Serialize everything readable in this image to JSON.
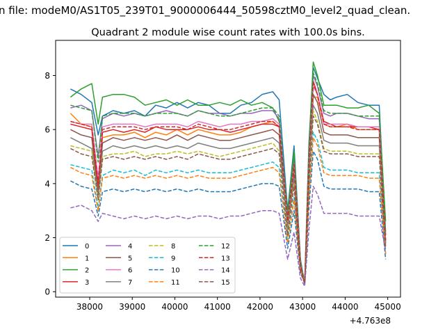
{
  "chart_data": {
    "type": "line",
    "suptitle": "n file: modeM0/AS1T05_239T01_9000006444_50598cztM0_level2_quad_clean.",
    "title": "Quadrant 2 module wise count rates with 100.0s bins.",
    "xlabel": "",
    "ylabel": "",
    "x_offset_label": "+4.763e8",
    "xlim": [
      37200,
      45300
    ],
    "ylim": [
      -0.2,
      9.3
    ],
    "x_ticks": [
      38000,
      39000,
      40000,
      41000,
      42000,
      43000,
      44000,
      45000
    ],
    "x_tick_labels": [
      "38000",
      "39000",
      "40000",
      "41000",
      "42000",
      "43000",
      "44000",
      "45000"
    ],
    "y_ticks": [
      0,
      2,
      4,
      6,
      8
    ],
    "y_tick_labels": [
      "0",
      "2",
      "4",
      "6",
      "8"
    ],
    "grid": false,
    "legend": "lower-left, 4 columns",
    "x": [
      37550,
      37800,
      38050,
      38200,
      38300,
      38550,
      38800,
      39050,
      39300,
      39550,
      39800,
      40050,
      40300,
      40550,
      40800,
      41050,
      41300,
      41550,
      41800,
      42050,
      42300,
      42450,
      42650,
      42800,
      42950,
      43050,
      43150,
      43250,
      43350,
      43500,
      43650,
      43800,
      44050,
      44300,
      44550,
      44800,
      44950
    ],
    "series": [
      {
        "name": "0",
        "color": "#1f77b4",
        "dash": "solid",
        "values": [
          7.5,
          7.3,
          7.0,
          5.8,
          6.5,
          6.7,
          6.6,
          6.7,
          6.5,
          6.9,
          6.8,
          7.0,
          6.8,
          7.0,
          6.9,
          6.6,
          6.6,
          6.9,
          7.0,
          7.3,
          7.4,
          7.1,
          3.0,
          5.4,
          1.2,
          0.3,
          5.5,
          8.3,
          7.9,
          7.3,
          7.1,
          7.2,
          7.3,
          7.0,
          6.9,
          6.9,
          2.2
        ]
      },
      {
        "name": "1",
        "color": "#ff7f0e",
        "dash": "solid",
        "values": [
          6.6,
          6.2,
          6.1,
          3.9,
          5.7,
          5.8,
          5.8,
          5.9,
          5.7,
          5.9,
          5.8,
          6.0,
          5.8,
          6.0,
          5.9,
          5.8,
          5.8,
          5.9,
          6.1,
          6.2,
          6.3,
          6.1,
          2.6,
          4.6,
          1.0,
          0.3,
          4.7,
          7.2,
          7.2,
          6.2,
          6.1,
          6.1,
          6.2,
          6.0,
          6.0,
          6.0,
          1.8
        ]
      },
      {
        "name": "2",
        "color": "#2ca02c",
        "dash": "solid",
        "values": [
          7.2,
          7.5,
          7.7,
          6.2,
          7.2,
          7.3,
          7.3,
          7.2,
          6.9,
          7.0,
          7.1,
          6.9,
          7.1,
          6.9,
          6.9,
          7.0,
          6.9,
          7.1,
          6.9,
          7.0,
          6.8,
          6.3,
          2.9,
          5.2,
          1.1,
          0.3,
          5.3,
          8.5,
          8.0,
          6.9,
          6.9,
          6.9,
          6.8,
          6.8,
          6.9,
          6.6,
          2.6
        ]
      },
      {
        "name": "3",
        "color": "#d62728",
        "dash": "solid",
        "values": [
          6.2,
          6.1,
          6.0,
          3.8,
          5.9,
          6.0,
          5.9,
          6.0,
          5.9,
          6.1,
          6.0,
          6.0,
          6.0,
          6.1,
          6.0,
          6.0,
          5.9,
          6.0,
          6.1,
          6.2,
          6.2,
          6.1,
          2.5,
          4.6,
          1.0,
          0.3,
          4.8,
          7.8,
          7.3,
          6.3,
          6.2,
          6.1,
          6.1,
          6.1,
          6.1,
          6.0,
          1.9
        ]
      },
      {
        "name": "4",
        "color": "#9467bd",
        "dash": "solid",
        "values": [
          6.8,
          6.9,
          6.7,
          5.0,
          6.4,
          6.6,
          6.5,
          6.6,
          6.5,
          6.6,
          6.7,
          6.6,
          6.5,
          6.7,
          6.6,
          6.6,
          6.5,
          6.6,
          6.6,
          6.7,
          6.7,
          6.4,
          2.7,
          4.9,
          1.1,
          0.3,
          5.0,
          8.0,
          7.6,
          6.6,
          6.5,
          6.6,
          6.6,
          6.5,
          6.4,
          6.4,
          2.1
        ]
      },
      {
        "name": "5",
        "color": "#8c564b",
        "dash": "solid",
        "values": [
          6.0,
          5.8,
          5.7,
          3.6,
          5.5,
          5.7,
          5.6,
          5.7,
          5.6,
          5.7,
          5.6,
          5.8,
          5.6,
          5.8,
          5.7,
          5.6,
          5.6,
          5.7,
          5.8,
          5.9,
          6.0,
          5.8,
          2.4,
          4.4,
          0.9,
          0.3,
          4.5,
          7.3,
          7.0,
          5.9,
          5.8,
          5.8,
          5.8,
          5.7,
          5.7,
          5.7,
          1.8
        ]
      },
      {
        "name": "6",
        "color": "#e377c2",
        "dash": "solid",
        "values": [
          6.3,
          6.2,
          6.2,
          4.2,
          6.1,
          6.2,
          6.2,
          6.2,
          6.1,
          6.2,
          6.2,
          6.2,
          6.1,
          6.3,
          6.2,
          6.1,
          6.2,
          6.2,
          6.3,
          6.3,
          6.4,
          6.2,
          2.6,
          4.7,
          1.0,
          0.3,
          4.9,
          7.6,
          7.3,
          6.2,
          6.2,
          6.2,
          6.2,
          6.1,
          6.1,
          6.1,
          1.9
        ]
      },
      {
        "name": "7",
        "color": "#7f7f7f",
        "dash": "solid",
        "values": [
          5.7,
          5.5,
          5.3,
          3.5,
          5.2,
          5.4,
          5.3,
          5.4,
          5.3,
          5.4,
          5.3,
          5.4,
          5.3,
          5.5,
          5.4,
          5.3,
          5.3,
          5.4,
          5.5,
          5.6,
          5.7,
          5.5,
          2.3,
          4.2,
          0.9,
          0.3,
          4.3,
          6.9,
          6.6,
          5.6,
          5.5,
          5.5,
          5.5,
          5.4,
          5.4,
          5.4,
          1.7
        ]
      },
      {
        "name": "8",
        "color": "#bcbd22",
        "dash": "dashed",
        "values": [
          5.4,
          5.3,
          5.2,
          3.4,
          5.0,
          5.1,
          5.1,
          5.2,
          5.0,
          5.1,
          5.1,
          5.2,
          5.1,
          5.2,
          5.1,
          5.0,
          5.1,
          5.2,
          5.3,
          5.4,
          5.5,
          5.2,
          2.2,
          4.0,
          0.9,
          0.3,
          4.1,
          6.7,
          6.3,
          5.3,
          5.2,
          5.2,
          5.2,
          5.1,
          5.1,
          5.1,
          1.6
        ]
      },
      {
        "name": "9",
        "color": "#17becf",
        "dash": "dashed",
        "values": [
          4.7,
          4.6,
          4.5,
          3.1,
          4.3,
          4.5,
          4.4,
          4.5,
          4.3,
          4.5,
          4.4,
          4.5,
          4.4,
          4.5,
          4.4,
          4.4,
          4.4,
          4.5,
          4.6,
          4.7,
          4.8,
          4.6,
          1.9,
          3.5,
          0.8,
          0.3,
          3.6,
          5.9,
          5.6,
          4.6,
          4.5,
          4.5,
          4.5,
          4.4,
          4.4,
          4.4,
          1.4
        ]
      },
      {
        "name": "10",
        "color": "#1f77b4",
        "dash": "dashed",
        "values": [
          4.1,
          3.9,
          3.8,
          2.8,
          3.7,
          3.8,
          3.7,
          3.8,
          3.7,
          3.8,
          3.7,
          3.8,
          3.7,
          3.8,
          3.7,
          3.7,
          3.7,
          3.8,
          3.9,
          4.0,
          4.0,
          3.9,
          1.6,
          3.0,
          0.7,
          0.3,
          3.1,
          5.2,
          4.9,
          3.9,
          3.8,
          3.8,
          3.8,
          3.8,
          3.7,
          3.7,
          1.2
        ]
      },
      {
        "name": "11",
        "color": "#ff7f0e",
        "dash": "dashed",
        "values": [
          4.6,
          4.4,
          4.3,
          3.0,
          4.2,
          4.3,
          4.2,
          4.3,
          4.2,
          4.3,
          4.2,
          4.3,
          4.2,
          4.3,
          4.2,
          4.2,
          4.2,
          4.3,
          4.4,
          4.5,
          4.6,
          4.4,
          1.8,
          3.4,
          0.8,
          0.3,
          3.5,
          5.7,
          5.4,
          4.4,
          4.3,
          4.3,
          4.3,
          4.3,
          4.2,
          4.2,
          1.4
        ]
      },
      {
        "name": "12",
        "color": "#2ca02c",
        "dash": "dashed",
        "values": [
          6.9,
          6.8,
          6.7,
          4.8,
          6.5,
          6.6,
          6.6,
          6.6,
          6.5,
          6.6,
          6.6,
          6.6,
          6.5,
          6.7,
          6.6,
          6.5,
          6.5,
          6.6,
          6.7,
          6.8,
          6.8,
          6.5,
          2.7,
          5.0,
          1.1,
          0.3,
          5.1,
          8.1,
          7.7,
          6.7,
          6.6,
          6.6,
          6.6,
          6.5,
          6.5,
          6.5,
          2.1
        ]
      },
      {
        "name": "13",
        "color": "#d62728",
        "dash": "dashed",
        "values": [
          6.3,
          6.2,
          6.1,
          4.0,
          6.0,
          6.1,
          6.1,
          6.1,
          6.0,
          6.1,
          6.1,
          6.1,
          6.0,
          6.2,
          6.1,
          6.0,
          6.0,
          6.1,
          6.2,
          6.3,
          6.3,
          6.1,
          2.6,
          4.7,
          1.0,
          0.3,
          4.8,
          7.7,
          7.3,
          6.2,
          6.1,
          6.1,
          6.1,
          6.0,
          6.0,
          6.0,
          1.9
        ]
      },
      {
        "name": "14",
        "color": "#9467bd",
        "dash": "dashed",
        "values": [
          3.1,
          3.2,
          3.0,
          2.6,
          2.9,
          2.8,
          2.7,
          2.8,
          2.7,
          2.8,
          2.7,
          2.8,
          2.7,
          2.8,
          2.8,
          2.7,
          2.8,
          2.8,
          2.9,
          3.0,
          3.0,
          2.9,
          1.2,
          2.2,
          0.5,
          0.2,
          2.3,
          3.9,
          3.6,
          2.9,
          2.9,
          2.9,
          2.9,
          2.8,
          2.8,
          2.8,
          1.5
        ]
      },
      {
        "name": "15",
        "color": "#8c564b",
        "dash": "dashed",
        "values": [
          5.3,
          5.1,
          5.0,
          3.4,
          4.9,
          5.0,
          4.9,
          5.0,
          4.9,
          5.0,
          4.9,
          5.0,
          4.9,
          5.1,
          5.0,
          4.9,
          4.9,
          5.0,
          5.1,
          5.2,
          5.3,
          5.1,
          2.1,
          3.9,
          0.8,
          0.3,
          4.0,
          6.5,
          6.2,
          5.2,
          5.1,
          5.1,
          5.1,
          5.0,
          5.0,
          5.0,
          1.6
        ]
      }
    ]
  }
}
